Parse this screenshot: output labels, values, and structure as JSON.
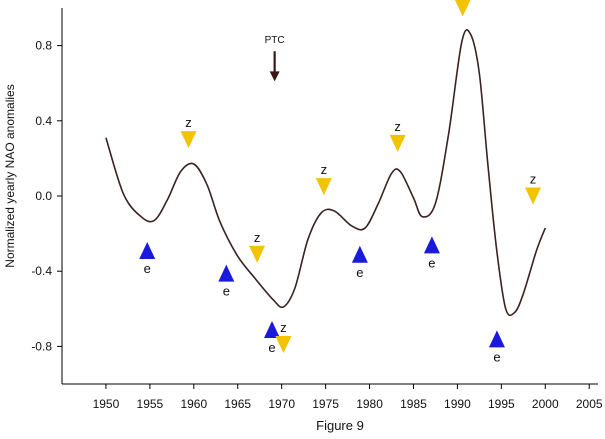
{
  "chart_data": {
    "type": "line",
    "xlabel": "Figure 9",
    "ylabel": "Normalized yearly NAO anomalies",
    "xlim": [
      1945,
      2006
    ],
    "ylim": [
      -1.0,
      1.0
    ],
    "x_ticks": [
      1950,
      1955,
      1960,
      1965,
      1970,
      1975,
      1980,
      1985,
      1990,
      1995,
      2000,
      2005
    ],
    "y_ticks": [
      {
        "value": -0.8,
        "label": "-0.8"
      },
      {
        "value": -0.4,
        "label": "-0.4"
      },
      {
        "value": 0.0,
        "label": "0.0"
      },
      {
        "value": 0.4,
        "label": "0.4"
      },
      {
        "value": 0.8,
        "label": "0.8"
      }
    ],
    "grid": false,
    "series": [
      {
        "color": "#3a2222",
        "x": [
          1950,
          1952,
          1954,
          1955.5,
          1957,
          1958.5,
          1960,
          1961.5,
          1963,
          1965,
          1967,
          1969,
          1970.2,
          1971.5,
          1973,
          1974.5,
          1976,
          1978,
          1979.5,
          1981,
          1982.5,
          1983.5,
          1985,
          1986,
          1987.5,
          1989,
          1990.5,
          1991.5,
          1992.5,
          1993.5,
          1994.5,
          1995.5,
          1996.5,
          1997.5,
          1999,
          2000
        ],
        "y": [
          0.31,
          0.01,
          -0.11,
          -0.13,
          -0.02,
          0.13,
          0.17,
          0.06,
          -0.14,
          -0.32,
          -0.44,
          -0.55,
          -0.59,
          -0.49,
          -0.23,
          -0.09,
          -0.08,
          -0.16,
          -0.17,
          -0.04,
          0.12,
          0.13,
          -0.01,
          -0.11,
          -0.04,
          0.33,
          0.82,
          0.86,
          0.65,
          0.15,
          -0.3,
          -0.6,
          -0.62,
          -0.52,
          -0.29,
          -0.17
        ]
      }
    ],
    "markers": [
      {
        "type": "e",
        "x": 1954.7,
        "y": -0.29,
        "color": "#1a1adc"
      },
      {
        "type": "z",
        "x": 1959.4,
        "y": 0.3,
        "color": "#f2c300"
      },
      {
        "type": "e",
        "x": 1963.7,
        "y": -0.41,
        "color": "#1a1adc"
      },
      {
        "type": "z",
        "x": 1967.2,
        "y": -0.31,
        "color": "#f2c300"
      },
      {
        "type": "e",
        "x": 1968.9,
        "y": -0.71,
        "color": "#1a1adc"
      },
      {
        "type": "z",
        "x": 1970.2,
        "y": -0.79,
        "color": "#f2c300"
      },
      {
        "type": "z",
        "x": 1974.8,
        "y": 0.05,
        "color": "#f2c300"
      },
      {
        "type": "e",
        "x": 1978.9,
        "y": -0.31,
        "color": "#1a1adc"
      },
      {
        "type": "z",
        "x": 1983.2,
        "y": 0.28,
        "color": "#f2c300"
      },
      {
        "type": "e",
        "x": 1987.1,
        "y": -0.26,
        "color": "#1a1adc"
      },
      {
        "type": "z",
        "x": 1990.6,
        "y": 1.0,
        "color": "#f2c300"
      },
      {
        "type": "e",
        "x": 1994.5,
        "y": -0.76,
        "color": "#1a1adc"
      },
      {
        "type": "z",
        "x": 1998.6,
        "y": 0.0,
        "color": "#f2c300"
      }
    ],
    "annotations": [
      {
        "text": "PTC",
        "x": 1969.2,
        "y_from": 0.77,
        "y_to": 0.61,
        "color": "#3a1818"
      }
    ]
  }
}
